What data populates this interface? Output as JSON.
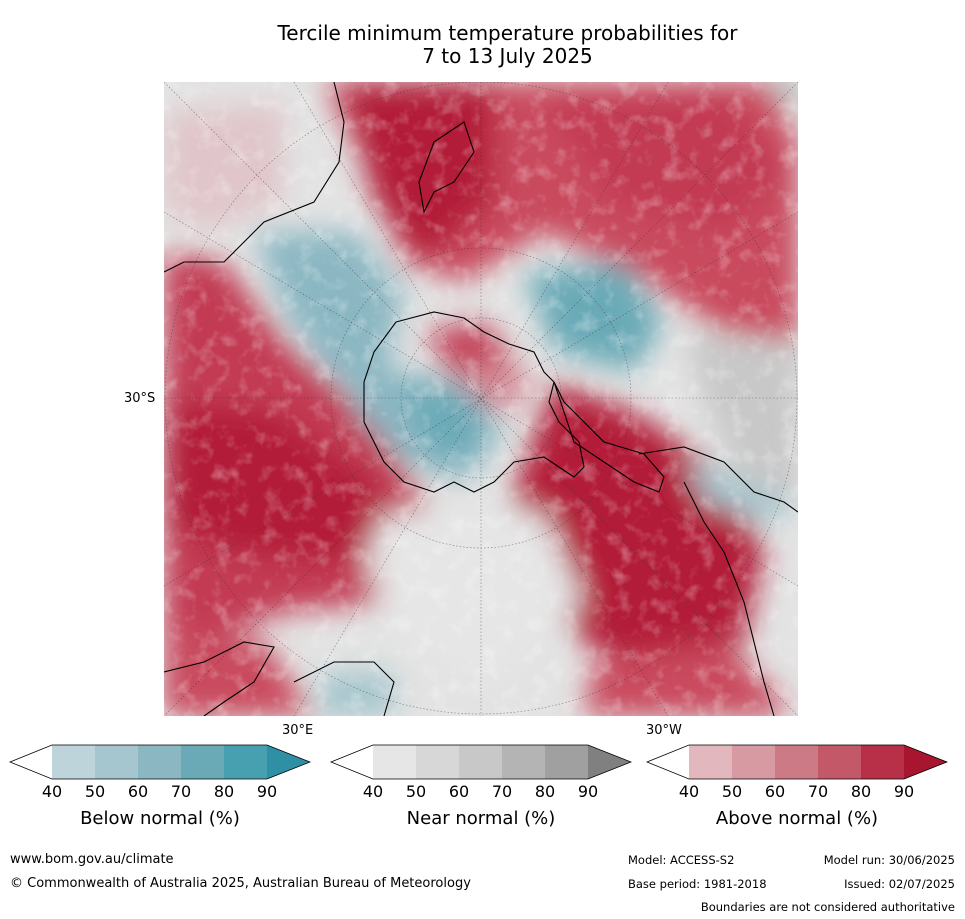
{
  "title_line1": "Tercile minimum temperature probabilities for",
  "title_line2": "7 to 13 July 2025",
  "map": {
    "lat_label": "30°S",
    "lon_label_east": "30°E",
    "lon_label_west": "30°W"
  },
  "legend": {
    "ticks": [
      "40",
      "50",
      "60",
      "70",
      "80",
      "90"
    ],
    "below": {
      "title": "Below normal (%)",
      "colors": [
        "#ffffff",
        "#bdd4da",
        "#a5c6ce",
        "#8bb7c3",
        "#6aaab7",
        "#47a0b0",
        "#2e8fa5"
      ]
    },
    "near": {
      "title": "Near normal (%)",
      "colors": [
        "#ffffff",
        "#e6e6e6",
        "#d7d7d7",
        "#c8c8c8",
        "#b4b4b4",
        "#a0a0a0",
        "#808080"
      ]
    },
    "above": {
      "title": "Above normal (%)",
      "colors": [
        "#ffffff",
        "#e2b8be",
        "#d79aa2",
        "#cc7a86",
        "#c25868",
        "#b83047",
        "#a8152f"
      ]
    }
  },
  "footer": {
    "website": "www.bom.gov.au/climate",
    "copyright": "© Commonwealth of Australia 2025, Australian Bureau of Meteorology",
    "model": "Model: ACCESS-S2",
    "base_period": "Base period: 1981-2018",
    "model_run": "Model run: 30/06/2025",
    "issued": "Issued: 02/07/2025",
    "disclaimer": "Boundaries are not considered authoritative"
  }
}
